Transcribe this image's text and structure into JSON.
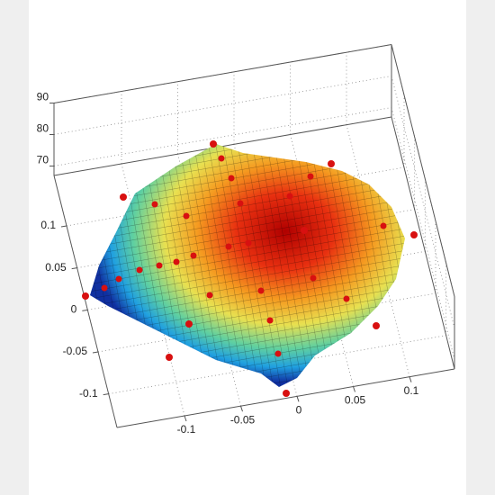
{
  "chart_data": {
    "type": "surface",
    "xlim": [
      -0.16,
      0.14
    ],
    "xticks": [
      -0.1,
      -0.05,
      0,
      0.05,
      0.1
    ],
    "ylim": [
      -0.14,
      0.16
    ],
    "yticks": [
      -0.1,
      -0.05,
      0,
      0.05,
      0.1
    ],
    "zlim": [
      67,
      90
    ],
    "zticks": [
      70,
      80,
      90
    ],
    "grid": true
  }
}
